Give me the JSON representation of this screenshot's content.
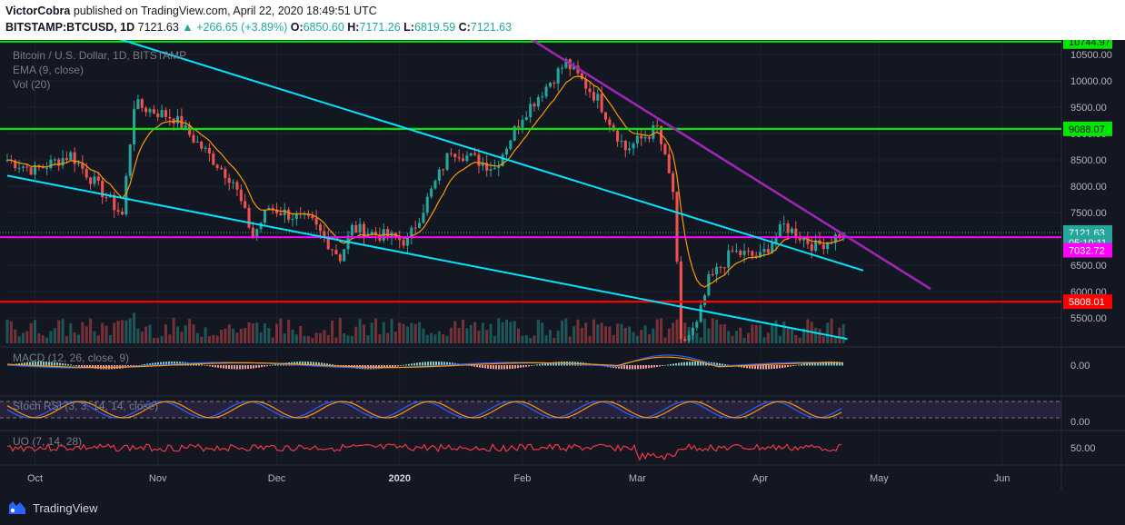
{
  "header": {
    "author": "VictorCobra",
    "published_text": "published on TradingView.com, April 22, 2020 18:49:51 UTC",
    "symbol": "BITSTAMP:BTCUSD, 1D",
    "last": "7121.63",
    "change": "+266.65 (+3.89%)",
    "o_label": "O:",
    "o_value": "6850.60",
    "h_label": "H:",
    "h_value": "7171.26",
    "l_label": "L:",
    "l_value": "6819.59",
    "c_label": "C:",
    "c_value": "7121.63"
  },
  "legend": {
    "title": "Bitcoin / U.S. Dollar, 1D, BITSTAMP",
    "ema": "EMA (9, close)",
    "vol": "Vol (20)"
  },
  "price_axis": {
    "ticks": [
      "10500.00",
      "10000.00",
      "9500.00",
      "9000.00",
      "8500.00",
      "8000.00",
      "7500.00",
      "7000.00",
      "6500.00",
      "6000.00",
      "5500.00"
    ],
    "ticks_values": [
      10500,
      10000,
      9500,
      9000,
      8500,
      8000,
      7500,
      7000,
      6500,
      6000,
      5500
    ],
    "tags": [
      {
        "text": "10744.97",
        "value": 10744.97,
        "bg": "#00e600",
        "fg": "#131722"
      },
      {
        "text": "9088.07",
        "value": 9088.07,
        "bg": "#00e600",
        "fg": "#131722"
      },
      {
        "text": "7121.63",
        "value": 7121.63,
        "bg": "#26a69a",
        "fg": "#ffffff"
      },
      {
        "text": "05:10:11",
        "value": 6935,
        "bg": "#26a69a",
        "fg": "#ffffff"
      },
      {
        "text": "7032.72",
        "value": 6785,
        "bg": "#ff00ff",
        "fg": "#ffffff"
      },
      {
        "text": "5808.01",
        "value": 5808.01,
        "bg": "#ff0000",
        "fg": "#ffffff"
      }
    ]
  },
  "time_axis": {
    "labels": [
      "Oct",
      "Nov",
      "Dec",
      "2020",
      "Feb",
      "Mar",
      "Apr",
      "May",
      "Jun"
    ]
  },
  "indicators": {
    "macd_label": "MACD (12, 26, close, 9)",
    "macd_tick": "0.00",
    "stoch_label": "Stoch RSI (3, 3, 14, 14, close)",
    "stoch_tick": "0.00",
    "uo_label": "UO (7, 14, 28)",
    "uo_tick": "50.00"
  },
  "footer": {
    "brand": "TradingView"
  },
  "colors": {
    "background": "#131722",
    "up": "#26a69a",
    "down": "#ef5350",
    "ema": "#ff9800",
    "green_level": "#00e600",
    "red_level": "#ff0000",
    "trend_cyan": "#00e5ff",
    "trend_purple": "#9c27b0",
    "magenta": "#ff00ff"
  },
  "chart_data": {
    "type": "candlestick",
    "title": "Bitcoin / U.S. Dollar, 1D, BITSTAMP",
    "x_range": [
      "2019-09-24",
      "2020-06-16"
    ],
    "ylim": [
      5100,
      10800
    ],
    "key_points": [
      {
        "date": "2019-09-24",
        "close": 8500
      },
      {
        "date": "2019-10-01",
        "close": 8300
      },
      {
        "date": "2019-10-10",
        "close": 8600
      },
      {
        "date": "2019-10-23",
        "close": 7450
      },
      {
        "date": "2019-10-26",
        "close": 9550
      },
      {
        "date": "2019-11-05",
        "close": 9300
      },
      {
        "date": "2019-11-20",
        "close": 8100
      },
      {
        "date": "2019-11-25",
        "close": 7050
      },
      {
        "date": "2019-11-29",
        "close": 7600
      },
      {
        "date": "2019-12-10",
        "close": 7300
      },
      {
        "date": "2019-12-17",
        "close": 6650
      },
      {
        "date": "2019-12-20",
        "close": 7200
      },
      {
        "date": "2020-01-03",
        "close": 6950
      },
      {
        "date": "2020-01-14",
        "close": 8700
      },
      {
        "date": "2020-01-25",
        "close": 8350
      },
      {
        "date": "2020-02-01",
        "close": 9350
      },
      {
        "date": "2020-02-12",
        "close": 10350
      },
      {
        "date": "2020-02-20",
        "close": 9650
      },
      {
        "date": "2020-02-27",
        "close": 8700
      },
      {
        "date": "2020-03-06",
        "close": 9100
      },
      {
        "date": "2020-03-10",
        "close": 7900
      },
      {
        "date": "2020-03-12",
        "close": 5000
      },
      {
        "date": "2020-03-16",
        "close": 5350
      },
      {
        "date": "2020-03-19",
        "close": 6200
      },
      {
        "date": "2020-03-25",
        "close": 6750
      },
      {
        "date": "2020-04-01",
        "close": 6650
      },
      {
        "date": "2020-04-07",
        "close": 7250
      },
      {
        "date": "2020-04-15",
        "close": 6850
      },
      {
        "date": "2020-04-22",
        "close": 7121.63
      }
    ],
    "horizontal_levels": [
      10744.97,
      9088.07,
      7032.72,
      5808.01
    ],
    "trendlines": [
      {
        "color": "cyan",
        "from": {
          "date": "2019-10-22",
          "price": 10800
        },
        "to": {
          "date": "2020-04-27",
          "price": 6400
        }
      },
      {
        "color": "cyan",
        "from": {
          "date": "2019-09-24",
          "price": 8200
        },
        "to": {
          "date": "2020-04-23",
          "price": 5100
        }
      },
      {
        "color": "purple",
        "from": {
          "date": "2020-02-03",
          "price": 10800
        },
        "to": {
          "date": "2020-05-14",
          "price": 6050
        }
      }
    ]
  }
}
